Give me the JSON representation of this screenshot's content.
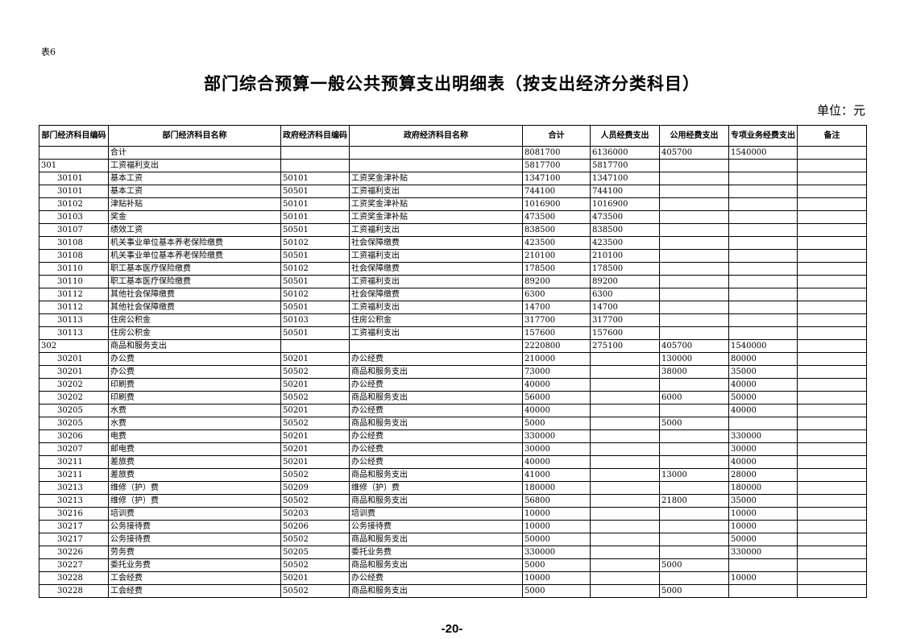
{
  "doc": {
    "tag": "表6",
    "title": "部门综合预算一般公共预算支出明细表（按支出经济分类科目）",
    "unit": "单位：元",
    "page_number": "-20-"
  },
  "table": {
    "headers": [
      "部门经济科目编码",
      "部门经济科目名称",
      "政府经济科目编码",
      "政府经济科目名称",
      "合计",
      "人员经费支出",
      "公用经费支出",
      "专项业务经费支出",
      "备注"
    ],
    "rows": [
      [
        "",
        "合计",
        "",
        "",
        "8081700",
        "6136000",
        "405700",
        "1540000",
        ""
      ],
      [
        "301",
        "工资福利支出",
        "",
        "",
        "5817700",
        "5817700",
        "",
        "",
        ""
      ],
      [
        "30101",
        "基本工资",
        "50101",
        "工资奖金津补贴",
        "1347100",
        "1347100",
        "",
        "",
        ""
      ],
      [
        "30101",
        "基本工资",
        "50501",
        "工资福利支出",
        "744100",
        "744100",
        "",
        "",
        ""
      ],
      [
        "30102",
        "津贴补贴",
        "50101",
        "工资奖金津补贴",
        "1016900",
        "1016900",
        "",
        "",
        ""
      ],
      [
        "30103",
        "奖金",
        "50101",
        "工资奖金津补贴",
        "473500",
        "473500",
        "",
        "",
        ""
      ],
      [
        "30107",
        "绩效工资",
        "50501",
        "工资福利支出",
        "838500",
        "838500",
        "",
        "",
        ""
      ],
      [
        "30108",
        "机关事业单位基本养老保险缴费",
        "50102",
        "社会保障缴费",
        "423500",
        "423500",
        "",
        "",
        ""
      ],
      [
        "30108",
        "机关事业单位基本养老保险缴费",
        "50501",
        "工资福利支出",
        "210100",
        "210100",
        "",
        "",
        ""
      ],
      [
        "30110",
        "职工基本医疗保险缴费",
        "50102",
        "社会保障缴费",
        "178500",
        "178500",
        "",
        "",
        ""
      ],
      [
        "30110",
        "职工基本医疗保险缴费",
        "50501",
        "工资福利支出",
        "89200",
        "89200",
        "",
        "",
        ""
      ],
      [
        "30112",
        "其他社会保障缴费",
        "50102",
        "社会保障缴费",
        "6300",
        "6300",
        "",
        "",
        ""
      ],
      [
        "30112",
        "其他社会保障缴费",
        "50501",
        "工资福利支出",
        "14700",
        "14700",
        "",
        "",
        ""
      ],
      [
        "30113",
        "住房公积金",
        "50103",
        "住房公积金",
        "317700",
        "317700",
        "",
        "",
        ""
      ],
      [
        "30113",
        "住房公积金",
        "50501",
        "工资福利支出",
        "157600",
        "157600",
        "",
        "",
        ""
      ],
      [
        "302",
        "商品和服务支出",
        "",
        "",
        "2220800",
        "275100",
        "405700",
        "1540000",
        ""
      ],
      [
        "30201",
        "办公费",
        "50201",
        "办公经费",
        "210000",
        "",
        "130000",
        "80000",
        ""
      ],
      [
        "30201",
        "办公费",
        "50502",
        "商品和服务支出",
        "73000",
        "",
        "38000",
        "35000",
        ""
      ],
      [
        "30202",
        "印刷费",
        "50201",
        "办公经费",
        "40000",
        "",
        "",
        "40000",
        ""
      ],
      [
        "30202",
        "印刷费",
        "50502",
        "商品和服务支出",
        "56000",
        "",
        "6000",
        "50000",
        ""
      ],
      [
        "30205",
        "水费",
        "50201",
        "办公经费",
        "40000",
        "",
        "",
        "40000",
        ""
      ],
      [
        "30205",
        "水费",
        "50502",
        "商品和服务支出",
        "5000",
        "",
        "5000",
        "",
        ""
      ],
      [
        "30206",
        "电费",
        "50201",
        "办公经费",
        "330000",
        "",
        "",
        "330000",
        ""
      ],
      [
        "30207",
        "邮电费",
        "50201",
        "办公经费",
        "30000",
        "",
        "",
        "30000",
        ""
      ],
      [
        "30211",
        "差旅费",
        "50201",
        "办公经费",
        "40000",
        "",
        "",
        "40000",
        ""
      ],
      [
        "30211",
        "差旅费",
        "50502",
        "商品和服务支出",
        "41000",
        "",
        "13000",
        "28000",
        ""
      ],
      [
        "30213",
        "维修（护）费",
        "50209",
        "维修（护）费",
        "180000",
        "",
        "",
        "180000",
        ""
      ],
      [
        "30213",
        "维修（护）费",
        "50502",
        "商品和服务支出",
        "56800",
        "",
        "21800",
        "35000",
        ""
      ],
      [
        "30216",
        "培训费",
        "50203",
        "培训费",
        "10000",
        "",
        "",
        "10000",
        ""
      ],
      [
        "30217",
        "公务接待费",
        "50206",
        "公务接待费",
        "10000",
        "",
        "",
        "10000",
        ""
      ],
      [
        "30217",
        "公务接待费",
        "50502",
        "商品和服务支出",
        "50000",
        "",
        "",
        "50000",
        ""
      ],
      [
        "30226",
        "劳务费",
        "50205",
        "委托业务费",
        "330000",
        "",
        "",
        "330000",
        ""
      ],
      [
        "30227",
        "委托业务费",
        "50502",
        "商品和服务支出",
        "5000",
        "",
        "5000",
        "",
        ""
      ],
      [
        "30228",
        "工会经费",
        "50201",
        "办公经费",
        "10000",
        "",
        "",
        "10000",
        ""
      ],
      [
        "30228",
        "工会经费",
        "50502",
        "商品和服务支出",
        "5000",
        "",
        "5000",
        "",
        ""
      ]
    ]
  }
}
